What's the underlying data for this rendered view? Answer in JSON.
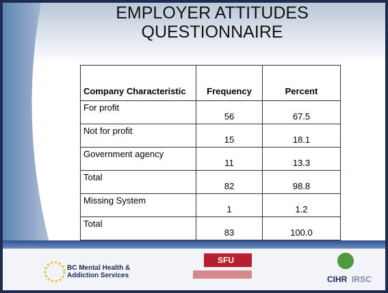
{
  "title": {
    "line1": "EMPLOYER ATTITUDES",
    "line2": "QUESTIONNAIRE"
  },
  "table": {
    "header": [
      "Company Characteristic",
      "Frequency",
      "Percent"
    ],
    "rows": [
      [
        "For profit",
        "56",
        "67.5"
      ],
      [
        "Not for profit",
        "15",
        "18.1"
      ],
      [
        "Government agency",
        "11",
        "13.3"
      ],
      [
        "Total",
        "82",
        "98.8"
      ],
      [
        "Missing System",
        "1",
        "1.2"
      ],
      [
        "Total",
        "83",
        "100.0"
      ]
    ]
  },
  "logos": {
    "bcmhas_line1": "BC Mental Health &",
    "bcmhas_line2": "Addiction Services",
    "sfu": "SFU",
    "cihr": "CIHR",
    "irsc": "IRSC"
  }
}
